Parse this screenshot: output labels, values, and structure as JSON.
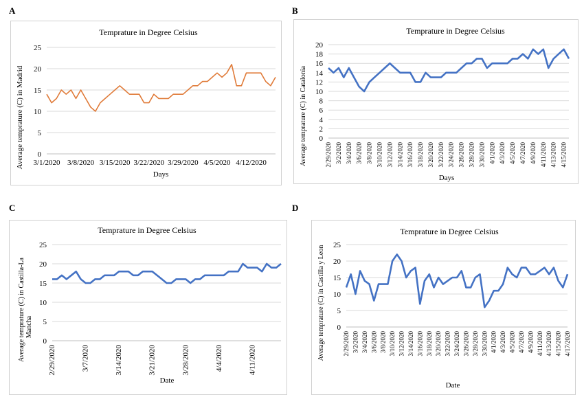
{
  "panels": [
    {
      "letter": "A"
    },
    {
      "letter": "B"
    },
    {
      "letter": "C"
    },
    {
      "letter": "D"
    }
  ],
  "chart_data": [
    {
      "type": "line",
      "title": "Temprature in Degree Celsius",
      "xlabel": "Days",
      "ylabel": "Average temprature (C) in Madrid",
      "ylim": [
        0,
        25
      ],
      "yticks": [
        0,
        5,
        10,
        15,
        20,
        25
      ],
      "grid": true,
      "color": "#E07B39",
      "x_tick_labels": [
        {
          "i": 0,
          "label": "3/1/2020"
        },
        {
          "i": 7,
          "label": "3/8/2020"
        },
        {
          "i": 14,
          "label": "3/15/2020"
        },
        {
          "i": 21,
          "label": "3/22/2020"
        },
        {
          "i": 28,
          "label": "3/29/2020"
        },
        {
          "i": 35,
          "label": "4/5/2020"
        },
        {
          "i": 42,
          "label": "4/12/2020"
        }
      ],
      "series": [
        {
          "values": [
            14,
            12,
            13,
            15,
            14,
            15,
            13,
            15,
            13,
            11,
            10,
            12,
            13,
            14,
            15,
            16,
            15,
            14,
            14,
            14,
            12,
            12,
            14,
            13,
            13,
            13,
            14,
            14,
            14,
            15,
            16,
            16,
            17,
            17,
            18,
            19,
            18,
            19,
            21,
            16,
            16,
            19,
            19,
            19,
            19,
            17,
            16,
            18
          ]
        }
      ]
    },
    {
      "type": "line",
      "title": "Temprature in Degree Celsius",
      "xlabel": "Days",
      "ylabel": "Average temprature (C) in Catalonia",
      "ylim": [
        0,
        20
      ],
      "yticks": [
        0,
        2,
        4,
        6,
        8,
        10,
        12,
        14,
        16,
        18,
        20
      ],
      "grid": true,
      "color": "#4472C4",
      "x_tick_labels": [
        {
          "i": 0,
          "label": "2/29/2020"
        },
        {
          "i": 2,
          "label": "3/2/2020"
        },
        {
          "i": 4,
          "label": "3/4/2020"
        },
        {
          "i": 6,
          "label": "3/6/2020"
        },
        {
          "i": 8,
          "label": "3/8/2020"
        },
        {
          "i": 10,
          "label": "3/10/2020"
        },
        {
          "i": 12,
          "label": "3/12/2020"
        },
        {
          "i": 14,
          "label": "3/14/2020"
        },
        {
          "i": 16,
          "label": "3/16/2020"
        },
        {
          "i": 18,
          "label": "3/18/2020"
        },
        {
          "i": 20,
          "label": "3/20/2020"
        },
        {
          "i": 22,
          "label": "3/22/2020"
        },
        {
          "i": 24,
          "label": "3/24/2020"
        },
        {
          "i": 26,
          "label": "3/26/2020"
        },
        {
          "i": 28,
          "label": "3/28/2020"
        },
        {
          "i": 30,
          "label": "3/30/2020"
        },
        {
          "i": 32,
          "label": "4/1/2020"
        },
        {
          "i": 34,
          "label": "4/3/2020"
        },
        {
          "i": 36,
          "label": "4/5/2020"
        },
        {
          "i": 38,
          "label": "4/7/2020"
        },
        {
          "i": 40,
          "label": "4/9/2020"
        },
        {
          "i": 42,
          "label": "4/11/2020"
        },
        {
          "i": 44,
          "label": "4/13/2020"
        },
        {
          "i": 46,
          "label": "4/15/2020"
        }
      ],
      "series": [
        {
          "values": [
            15,
            14,
            15,
            13,
            15,
            13,
            11,
            10,
            12,
            13,
            14,
            15,
            16,
            15,
            14,
            14,
            14,
            12,
            12,
            14,
            13,
            13,
            13,
            14,
            14,
            14,
            15,
            16,
            16,
            17,
            17,
            15,
            16,
            16,
            16,
            16,
            17,
            17,
            18,
            17,
            19,
            18,
            19,
            15,
            17,
            18,
            19,
            17
          ]
        }
      ]
    },
    {
      "type": "line",
      "title": "Temprature in Degree Celsius",
      "xlabel": "Date",
      "ylabel": "Average temprature (C) in Castilla-La Mancha",
      "ylabel_lines": [
        "Average temprature (C) in Castilla-La",
        "Mancha"
      ],
      "ylim": [
        0,
        25
      ],
      "yticks": [
        0,
        5,
        10,
        15,
        20,
        25
      ],
      "grid": true,
      "color": "#4472C4",
      "x_tick_labels": [
        {
          "i": 0,
          "label": "2/29/2020"
        },
        {
          "i": 7,
          "label": "3/7/2020"
        },
        {
          "i": 14,
          "label": "3/14/2020"
        },
        {
          "i": 21,
          "label": "3/21/2020"
        },
        {
          "i": 28,
          "label": "3/28/2020"
        },
        {
          "i": 35,
          "label": "4/4/2020"
        },
        {
          "i": 42,
          "label": "4/11/2020"
        }
      ],
      "series": [
        {
          "values": [
            16,
            16,
            17,
            16,
            17,
            18,
            16,
            15,
            15,
            16,
            16,
            17,
            17,
            17,
            18,
            18,
            18,
            17,
            17,
            18,
            18,
            18,
            17,
            16,
            15,
            15,
            16,
            16,
            16,
            15,
            16,
            16,
            17,
            17,
            17,
            17,
            17,
            18,
            18,
            18,
            20,
            19,
            19,
            19,
            18,
            20,
            19,
            19,
            20
          ]
        }
      ]
    },
    {
      "type": "line",
      "title": "Temprature in Degree Celsius",
      "xlabel": "Date",
      "ylabel": "Average temprature (C) in Castilla y Leon",
      "ylim": [
        0,
        25
      ],
      "yticks": [
        0,
        5,
        10,
        15,
        20,
        25
      ],
      "grid": true,
      "color": "#4472C4",
      "x_tick_labels": [
        {
          "i": 0,
          "label": "2/29/2020"
        },
        {
          "i": 2,
          "label": "3/2/2020"
        },
        {
          "i": 4,
          "label": "3/4/2020"
        },
        {
          "i": 6,
          "label": "3/6/2020"
        },
        {
          "i": 8,
          "label": "3/8/2020"
        },
        {
          "i": 10,
          "label": "3/10/2020"
        },
        {
          "i": 12,
          "label": "3/12/2020"
        },
        {
          "i": 14,
          "label": "3/14/2020"
        },
        {
          "i": 16,
          "label": "3/16/2020"
        },
        {
          "i": 18,
          "label": "3/18/2020"
        },
        {
          "i": 20,
          "label": "3/20/2020"
        },
        {
          "i": 22,
          "label": "3/22/2020"
        },
        {
          "i": 24,
          "label": "3/24/2020"
        },
        {
          "i": 26,
          "label": "3/26/2020"
        },
        {
          "i": 28,
          "label": "3/28/2020"
        },
        {
          "i": 30,
          "label": "3/30/2020"
        },
        {
          "i": 32,
          "label": "4/1/2020"
        },
        {
          "i": 34,
          "label": "4/3/2020"
        },
        {
          "i": 36,
          "label": "4/5/2020"
        },
        {
          "i": 38,
          "label": "4/7/2020"
        },
        {
          "i": 40,
          "label": "4/9/2020"
        },
        {
          "i": 42,
          "label": "4/11/2020"
        },
        {
          "i": 44,
          "label": "4/13/2020"
        },
        {
          "i": 46,
          "label": "4/15/2020"
        },
        {
          "i": 48,
          "label": "4/17/2020"
        }
      ],
      "series": [
        {
          "values": [
            12,
            16,
            10,
            17,
            14,
            13,
            8,
            13,
            13,
            13,
            20,
            22,
            20,
            15,
            17,
            18,
            7,
            14,
            16,
            12,
            15,
            13,
            14,
            15,
            15,
            17,
            12,
            12,
            15,
            16,
            6,
            8,
            11,
            11,
            13,
            18,
            16,
            15,
            18,
            18,
            16,
            16,
            17,
            18,
            16,
            18,
            14,
            12,
            16
          ]
        }
      ]
    }
  ]
}
